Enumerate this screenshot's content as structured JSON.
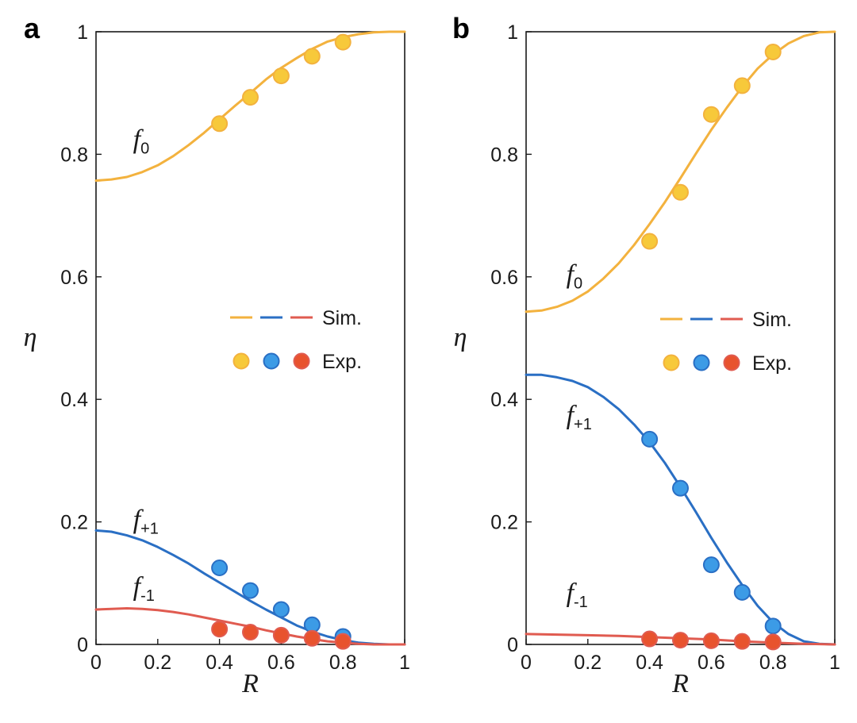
{
  "colors": {
    "f0": "#F3B23E",
    "f0_marker": "#F7C93A",
    "fp1": "#2A6FC4",
    "fp1_marker": "#3C9BE6",
    "fm1": "#E05B50",
    "fm1_marker": "#E8532E",
    "axis": "#1a1a1a"
  },
  "chart_data": [
    {
      "type": "line",
      "panel_label": "a",
      "xlabel": "R",
      "ylabel": "η",
      "xlim": [
        0,
        1
      ],
      "ylim": [
        0,
        1
      ],
      "xticks": [
        0,
        0.2,
        0.4,
        0.6,
        0.8,
        1
      ],
      "xtick_labels": [
        "0",
        "0.2",
        "0.4",
        "0.6",
        "0.8",
        "1"
      ],
      "yticks": [
        0,
        0.2,
        0.4,
        0.6,
        0.8,
        1
      ],
      "ytick_labels": [
        "0",
        "0.2",
        "0.4",
        "0.6",
        "0.8",
        "1"
      ],
      "legend": {
        "position": "center-right",
        "line_label": "Sim.",
        "marker_label": "Exp."
      },
      "series": [
        {
          "key": "f0",
          "label_main": "f",
          "label_sub": "0",
          "label_at": [
            0.12,
            0.81
          ],
          "sim": {
            "x": [
              0,
              0.05,
              0.1,
              0.15,
              0.2,
              0.25,
              0.3,
              0.35,
              0.4,
              0.45,
              0.5,
              0.55,
              0.6,
              0.65,
              0.7,
              0.75,
              0.8,
              0.85,
              0.9,
              0.95,
              1.0
            ],
            "y": [
              0.757,
              0.759,
              0.763,
              0.771,
              0.782,
              0.797,
              0.815,
              0.835,
              0.857,
              0.879,
              0.9,
              0.922,
              0.941,
              0.957,
              0.972,
              0.984,
              0.991,
              0.996,
              0.999,
              1.0,
              1.0
            ]
          },
          "exp": {
            "x": [
              0.4,
              0.5,
              0.6,
              0.7,
              0.8
            ],
            "y": [
              0.85,
              0.893,
              0.928,
              0.96,
              0.983
            ]
          }
        },
        {
          "key": "fp1",
          "label_main": "f",
          "label_sub": "+1",
          "label_at": [
            0.12,
            0.19
          ],
          "sim": {
            "x": [
              0,
              0.05,
              0.1,
              0.15,
              0.2,
              0.25,
              0.3,
              0.35,
              0.4,
              0.45,
              0.5,
              0.55,
              0.6,
              0.65,
              0.7,
              0.75,
              0.8,
              0.85,
              0.9,
              0.95,
              1.0
            ],
            "y": [
              0.186,
              0.184,
              0.178,
              0.17,
              0.159,
              0.146,
              0.132,
              0.116,
              0.101,
              0.086,
              0.071,
              0.057,
              0.044,
              0.031,
              0.021,
              0.013,
              0.007,
              0.003,
              0.001,
              0.0,
              0.0
            ]
          },
          "exp": {
            "x": [
              0.4,
              0.5,
              0.6,
              0.7,
              0.8
            ],
            "y": [
              0.125,
              0.088,
              0.057,
              0.032,
              0.013
            ]
          }
        },
        {
          "key": "fm1",
          "label_main": "f",
          "label_sub": "-1",
          "label_at": [
            0.12,
            0.08
          ],
          "sim": {
            "x": [
              0,
              0.05,
              0.1,
              0.15,
              0.2,
              0.25,
              0.3,
              0.35,
              0.4,
              0.45,
              0.5,
              0.55,
              0.6,
              0.65,
              0.7,
              0.75,
              0.8,
              0.85,
              0.9,
              0.95,
              1.0
            ],
            "y": [
              0.057,
              0.058,
              0.059,
              0.058,
              0.056,
              0.053,
              0.049,
              0.044,
              0.039,
              0.034,
              0.029,
              0.023,
              0.018,
              0.013,
              0.009,
              0.005,
              0.003,
              0.001,
              0.0,
              0.0,
              0.0
            ]
          },
          "exp": {
            "x": [
              0.4,
              0.5,
              0.6,
              0.7,
              0.8
            ],
            "y": [
              0.025,
              0.02,
              0.015,
              0.01,
              0.005
            ]
          }
        }
      ]
    },
    {
      "type": "line",
      "panel_label": "b",
      "xlabel": "R",
      "ylabel": "η",
      "xlim": [
        0,
        1
      ],
      "ylim": [
        0,
        1
      ],
      "xticks": [
        0,
        0.2,
        0.4,
        0.6,
        0.8,
        1
      ],
      "xtick_labels": [
        "0",
        "0.2",
        "0.4",
        "0.6",
        "0.8",
        "1"
      ],
      "yticks": [
        0,
        0.2,
        0.4,
        0.6,
        0.8,
        1
      ],
      "ytick_labels": [
        "0",
        "0.2",
        "0.4",
        "0.6",
        "0.8",
        "1"
      ],
      "legend": {
        "position": "center-right",
        "line_label": "Sim.",
        "marker_label": "Exp."
      },
      "series": [
        {
          "key": "f0",
          "label_main": "f",
          "label_sub": "0",
          "label_at": [
            0.13,
            0.59
          ],
          "sim": {
            "x": [
              0,
              0.05,
              0.1,
              0.15,
              0.2,
              0.25,
              0.3,
              0.35,
              0.4,
              0.45,
              0.5,
              0.55,
              0.6,
              0.65,
              0.7,
              0.75,
              0.8,
              0.85,
              0.9,
              0.95,
              1.0
            ],
            "y": [
              0.543,
              0.545,
              0.551,
              0.561,
              0.576,
              0.597,
              0.622,
              0.652,
              0.686,
              0.722,
              0.761,
              0.801,
              0.84,
              0.876,
              0.91,
              0.94,
              0.963,
              0.981,
              0.993,
              0.999,
              1.0
            ]
          },
          "exp": {
            "x": [
              0.4,
              0.5,
              0.6,
              0.7,
              0.8
            ],
            "y": [
              0.658,
              0.738,
              0.865,
              0.912,
              0.967
            ]
          }
        },
        {
          "key": "fp1",
          "label_main": "f",
          "label_sub": "+1",
          "label_at": [
            0.13,
            0.36
          ],
          "sim": {
            "x": [
              0,
              0.05,
              0.1,
              0.15,
              0.2,
              0.25,
              0.3,
              0.35,
              0.4,
              0.45,
              0.5,
              0.55,
              0.6,
              0.65,
              0.7,
              0.75,
              0.8,
              0.85,
              0.9,
              0.95,
              1.0
            ],
            "y": [
              0.44,
              0.44,
              0.436,
              0.43,
              0.42,
              0.404,
              0.384,
              0.359,
              0.33,
              0.296,
              0.257,
              0.216,
              0.174,
              0.134,
              0.097,
              0.063,
              0.036,
              0.017,
              0.005,
              0.001,
              0.0
            ]
          },
          "exp": {
            "x": [
              0.4,
              0.5,
              0.6,
              0.7,
              0.8
            ],
            "y": [
              0.335,
              0.255,
              0.13,
              0.085,
              0.03
            ]
          }
        },
        {
          "key": "fm1",
          "label_main": "f",
          "label_sub": "-1",
          "label_at": [
            0.13,
            0.07
          ],
          "sim": {
            "x": [
              0,
              0.1,
              0.2,
              0.3,
              0.4,
              0.5,
              0.6,
              0.7,
              0.8,
              0.9,
              1.0
            ],
            "y": [
              0.017,
              0.016,
              0.015,
              0.014,
              0.012,
              0.01,
              0.008,
              0.005,
              0.003,
              0.001,
              0.0
            ]
          },
          "exp": {
            "x": [
              0.4,
              0.5,
              0.6,
              0.7,
              0.8
            ],
            "y": [
              0.009,
              0.007,
              0.006,
              0.005,
              0.004
            ]
          }
        }
      ]
    }
  ]
}
